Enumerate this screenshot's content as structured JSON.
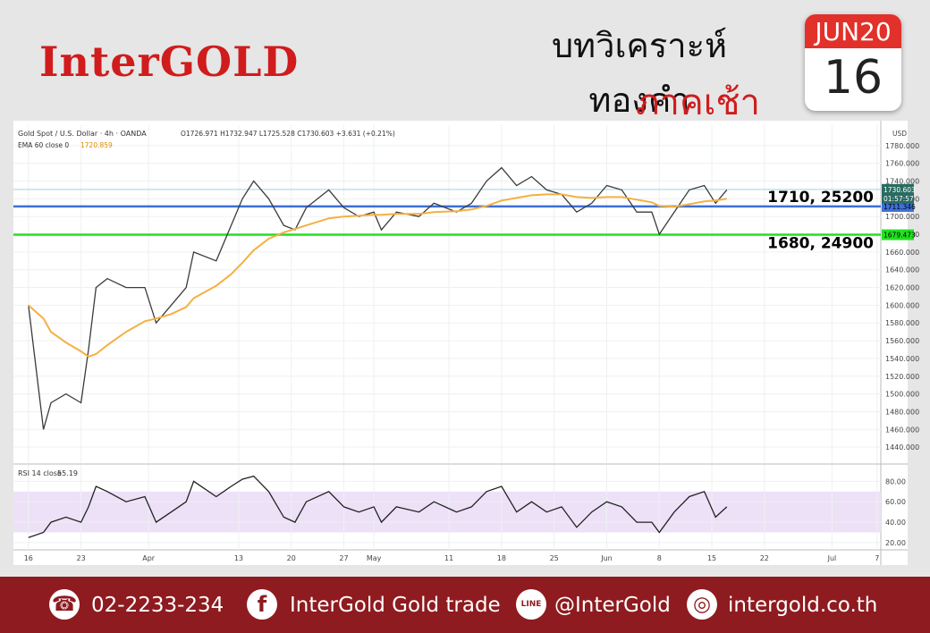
{
  "header": {
    "brand": "InterGOLD",
    "title": "บทวิเคราะห์ทองคำ",
    "subtitle": "ภาคเช้า",
    "calendar_month": "JUN20",
    "calendar_day": "16"
  },
  "footer": {
    "phone": "02-2233-234",
    "facebook": "InterGold Gold trade",
    "line_icon": "LINE",
    "line": "@InterGold",
    "website": "intergold.co.th"
  },
  "chart_data": [
    {
      "type": "line",
      "title": "Gold Spot / U.S. Dollar · 4h · OANDA",
      "ohlc": "O1726.971 H1732.947 L1725.528 C1730.603 +3.631 (+0.21%)",
      "ema_label": "EMA 60 close 0",
      "ema_value": "1720.859",
      "unit": "USD",
      "x": [
        0,
        2,
        3,
        5,
        7,
        8,
        9,
        10.5,
        13,
        15.5,
        17,
        19,
        21,
        22,
        25,
        27,
        28.5,
        30,
        32,
        34,
        35.5,
        37,
        40,
        42,
        44,
        46,
        47,
        49,
        52,
        54,
        57,
        59,
        61,
        63,
        65,
        67,
        69,
        71,
        73,
        75,
        77,
        79,
        81,
        83,
        84,
        86,
        88,
        90,
        91.5,
        93
      ],
      "series": [
        {
          "name": "XAUUSD",
          "color": "#3b3b3b",
          "values": [
            1600,
            1460,
            1490,
            1500,
            1490,
            1550,
            1620,
            1630,
            1620,
            1620,
            1580,
            1600,
            1620,
            1660,
            1650,
            1690,
            1720,
            1740,
            1720,
            1690,
            1685,
            1710,
            1730,
            1710,
            1700,
            1705,
            1685,
            1705,
            1700,
            1715,
            1705,
            1715,
            1740,
            1755,
            1735,
            1745,
            1730,
            1725,
            1705,
            1715,
            1735,
            1730,
            1705,
            1705,
            1680,
            1705,
            1730,
            1735,
            1715,
            1730
          ]
        },
        {
          "name": "EMA 60",
          "color": "#f5b041",
          "values": [
            1600,
            1585,
            1570,
            1558,
            1548,
            1542,
            1545,
            1555,
            1570,
            1582,
            1585,
            1590,
            1598,
            1608,
            1622,
            1635,
            1648,
            1662,
            1675,
            1682,
            1686,
            1690,
            1698,
            1700,
            1701,
            1702,
            1702,
            1703,
            1703,
            1705,
            1706,
            1708,
            1712,
            1718,
            1721,
            1724,
            1725,
            1725,
            1722,
            1721,
            1722,
            1722,
            1719,
            1716,
            1712,
            1711,
            1714,
            1717,
            1718,
            1720
          ]
        }
      ],
      "last_price": {
        "value": 1730.603,
        "label": "1730.603"
      },
      "countdown": "01:57:57",
      "levels": [
        {
          "value": 1711.346,
          "label": "1711.346",
          "color": "#3d6fd6",
          "annotation": "1710, 25200"
        },
        {
          "value": 1679.473,
          "label": "1679.473",
          "color": "#22e022",
          "annotation": "1680, 24900"
        }
      ],
      "xlim": [
        -2,
        113.5
      ],
      "ylim": [
        1422,
        1803
      ],
      "yticks": [
        {
          "value": 1440,
          "label": "1440.000"
        },
        {
          "value": 1460,
          "label": "1460.000"
        },
        {
          "value": 1480,
          "label": "1480.000"
        },
        {
          "value": 1500,
          "label": "1500.000"
        },
        {
          "value": 1520,
          "label": "1520.000"
        },
        {
          "value": 1540,
          "label": "1540.000"
        },
        {
          "value": 1560,
          "label": "1560.000"
        },
        {
          "value": 1580,
          "label": "1580.000"
        },
        {
          "value": 1600,
          "label": "1600.000"
        },
        {
          "value": 1620,
          "label": "1620.000"
        },
        {
          "value": 1640,
          "label": "1640.000"
        },
        {
          "value": 1660,
          "label": "1660.000"
        },
        {
          "value": 1680,
          "label": "1680.000"
        },
        {
          "value": 1700,
          "label": "1700.000"
        },
        {
          "value": 1720,
          "label": "1720.000"
        },
        {
          "value": 1740,
          "label": "1740.000"
        },
        {
          "value": 1760,
          "label": "1760.000"
        },
        {
          "value": 1780,
          "label": "1780.000"
        }
      ],
      "grid": true
    },
    {
      "type": "line",
      "title": "RSI 14 close",
      "last_value": "55.19",
      "band": [
        30,
        70
      ],
      "x": [
        0,
        2,
        3,
        5,
        7,
        8,
        9,
        10.5,
        13,
        15.5,
        17,
        19,
        21,
        22,
        25,
        27,
        28.5,
        30,
        32,
        34,
        35.5,
        37,
        40,
        42,
        44,
        46,
        47,
        49,
        52,
        54,
        57,
        59,
        61,
        63,
        65,
        67,
        69,
        71,
        73,
        75,
        77,
        79,
        81,
        83,
        84,
        86,
        88,
        90,
        91.5,
        93
      ],
      "series": [
        {
          "name": "RSI 14",
          "color": "#222222",
          "values": [
            25,
            30,
            40,
            45,
            40,
            55,
            75,
            70,
            60,
            65,
            40,
            50,
            60,
            80,
            65,
            75,
            82,
            85,
            70,
            45,
            40,
            60,
            70,
            55,
            50,
            55,
            40,
            55,
            50,
            60,
            50,
            55,
            70,
            75,
            50,
            60,
            50,
            55,
            35,
            50,
            60,
            55,
            40,
            40,
            30,
            50,
            65,
            70,
            45,
            55
          ]
        }
      ],
      "xlim": [
        -2,
        113.5
      ],
      "ylim": [
        13,
        96
      ],
      "yticks": [
        {
          "value": 20,
          "label": "20.00"
        },
        {
          "value": 40,
          "label": "40.00"
        },
        {
          "value": 60,
          "label": "60.00"
        },
        {
          "value": 80,
          "label": "80.00"
        }
      ],
      "xticks": [
        {
          "value": 0,
          "label": "16"
        },
        {
          "value": 7,
          "label": "23"
        },
        {
          "value": 16,
          "label": "Apr"
        },
        {
          "value": 28,
          "label": "13"
        },
        {
          "value": 35,
          "label": "20"
        },
        {
          "value": 42,
          "label": "27"
        },
        {
          "value": 46,
          "label": "May"
        },
        {
          "value": 56,
          "label": "11"
        },
        {
          "value": 63,
          "label": "18"
        },
        {
          "value": 70,
          "label": "25"
        },
        {
          "value": 77,
          "label": "Jun"
        },
        {
          "value": 84,
          "label": "8"
        },
        {
          "value": 91,
          "label": "15"
        },
        {
          "value": 98,
          "label": "22"
        },
        {
          "value": 107,
          "label": "Jul"
        },
        {
          "value": 113,
          "label": "7"
        }
      ],
      "grid": true
    }
  ]
}
